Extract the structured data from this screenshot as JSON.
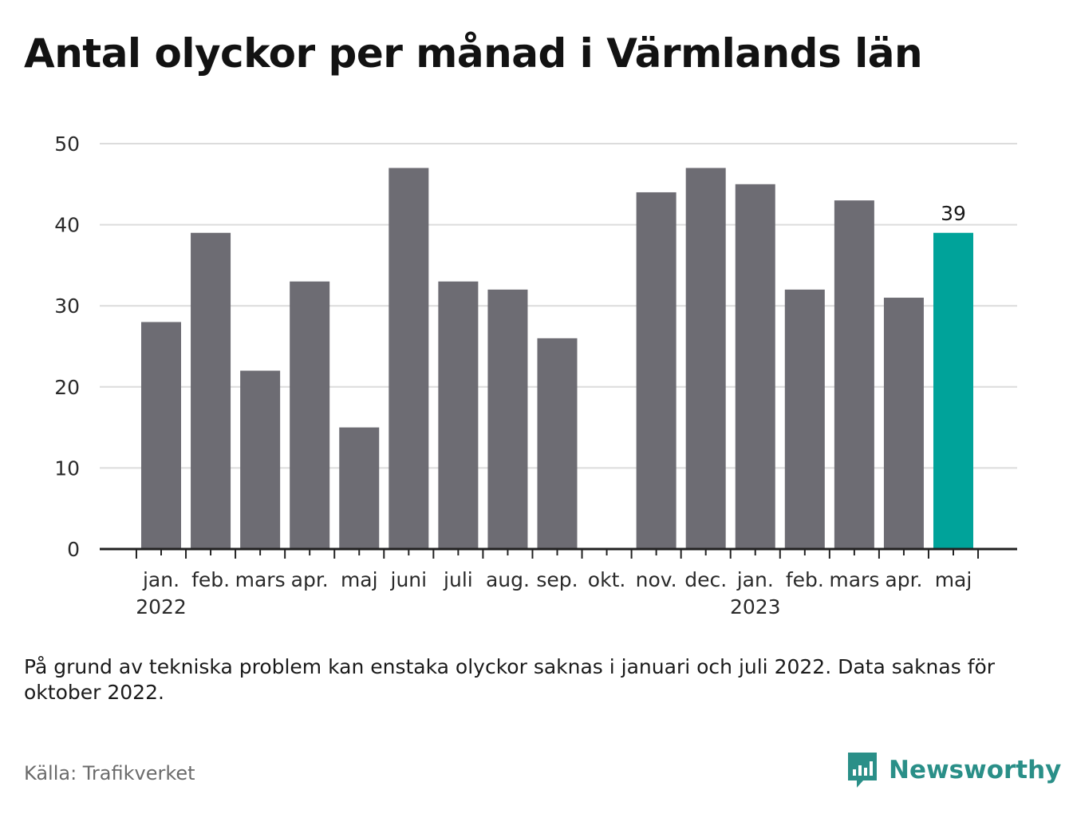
{
  "title": "Antal olyckor per månad i Värmlands län",
  "note": "På grund av tekniska problem kan enstaka olyckor saknas i januari och juli 2022. Data saknas för oktober 2022.",
  "source": "Källa: Trafikverket",
  "logo_text": "Newsworthy",
  "colors": {
    "bar": "#6d6c73",
    "highlight": "#00a39a",
    "grid": "#dcdcdc",
    "axis": "#222222",
    "brand": "#2a8f88"
  },
  "chart_data": {
    "type": "bar",
    "categories": [
      "jan.",
      "feb.",
      "mars",
      "apr.",
      "maj",
      "juni",
      "juli",
      "aug.",
      "sep.",
      "okt.",
      "nov.",
      "dec.",
      "jan.",
      "feb.",
      "mars",
      "apr.",
      "maj"
    ],
    "year_labels": [
      {
        "index": 0,
        "label": "2022"
      },
      {
        "index": 12,
        "label": "2023"
      }
    ],
    "values": [
      28,
      39,
      22,
      33,
      15,
      47,
      33,
      32,
      26,
      null,
      44,
      47,
      45,
      32,
      43,
      31,
      39
    ],
    "highlight_index": 16,
    "data_labels": [
      {
        "index": 16,
        "label": "39"
      }
    ],
    "yticks": [
      0,
      10,
      20,
      30,
      40,
      50
    ],
    "ylim": [
      0,
      50
    ],
    "grid": true,
    "xlabel": "",
    "ylabel": ""
  }
}
